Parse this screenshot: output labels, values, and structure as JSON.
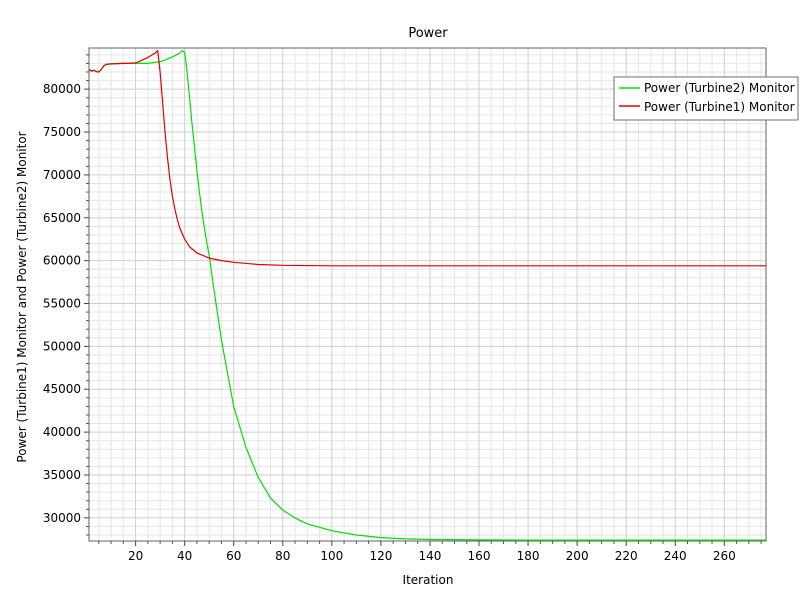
{
  "chart_data": {
    "type": "line",
    "title": "Power",
    "xlabel": "Iteration",
    "ylabel": "Power (Turbine1) Monitor and Power (Turbine2) Monitor",
    "xlim": [
      1,
      277
    ],
    "ylim": [
      27300,
      84800
    ],
    "xticks": [
      20,
      40,
      60,
      80,
      100,
      120,
      140,
      160,
      180,
      200,
      220,
      240,
      260
    ],
    "yticks": [
      30000,
      35000,
      40000,
      45000,
      50000,
      55000,
      60000,
      65000,
      70000,
      75000,
      80000
    ],
    "grid": true,
    "legend_position": "top-right",
    "series": [
      {
        "name": "Power (Turbine2) Monitor",
        "color": "#00e000",
        "points": [
          [
            1,
            82300
          ],
          [
            2,
            82100
          ],
          [
            3,
            82200
          ],
          [
            4,
            82050
          ],
          [
            5,
            82000
          ],
          [
            6,
            82300
          ],
          [
            7,
            82700
          ],
          [
            8,
            82900
          ],
          [
            10,
            82950
          ],
          [
            15,
            83000
          ],
          [
            20,
            83000
          ],
          [
            25,
            83000
          ],
          [
            30,
            83200
          ],
          [
            33,
            83500
          ],
          [
            36,
            83900
          ],
          [
            38,
            84200
          ],
          [
            39,
            84500
          ],
          [
            40,
            84300
          ],
          [
            41,
            82000
          ],
          [
            42,
            79000
          ],
          [
            43,
            76000
          ],
          [
            44,
            73200
          ],
          [
            45,
            70500
          ],
          [
            46,
            68000
          ],
          [
            47,
            65800
          ],
          [
            48,
            63900
          ],
          [
            49,
            62200
          ],
          [
            50,
            60600
          ],
          [
            52,
            56500
          ],
          [
            55,
            50700
          ],
          [
            60,
            43000
          ],
          [
            65,
            38200
          ],
          [
            70,
            34700
          ],
          [
            75,
            32300
          ],
          [
            80,
            30900
          ],
          [
            85,
            30000
          ],
          [
            90,
            29300
          ],
          [
            100,
            28500
          ],
          [
            110,
            28000
          ],
          [
            120,
            27700
          ],
          [
            130,
            27550
          ],
          [
            140,
            27480
          ],
          [
            160,
            27430
          ],
          [
            180,
            27410
          ],
          [
            200,
            27400
          ],
          [
            240,
            27400
          ],
          [
            277,
            27400
          ]
        ]
      },
      {
        "name": "Power (Turbine1) Monitor",
        "color": "#e00000",
        "points": [
          [
            1,
            82300
          ],
          [
            2,
            82100
          ],
          [
            3,
            82200
          ],
          [
            4,
            82050
          ],
          [
            5,
            82000
          ],
          [
            6,
            82300
          ],
          [
            7,
            82700
          ],
          [
            8,
            82900
          ],
          [
            10,
            82950
          ],
          [
            15,
            83000
          ],
          [
            20,
            83050
          ],
          [
            22,
            83300
          ],
          [
            25,
            83700
          ],
          [
            28,
            84200
          ],
          [
            29,
            84500
          ],
          [
            30,
            82000
          ],
          [
            31,
            78500
          ],
          [
            32,
            75000
          ],
          [
            33,
            72000
          ],
          [
            34,
            69500
          ],
          [
            35,
            67500
          ],
          [
            36,
            66000
          ],
          [
            37,
            64800
          ],
          [
            38,
            63800
          ],
          [
            40,
            62500
          ],
          [
            42,
            61600
          ],
          [
            45,
            60900
          ],
          [
            50,
            60300
          ],
          [
            55,
            60000
          ],
          [
            60,
            59800
          ],
          [
            70,
            59550
          ],
          [
            80,
            59450
          ],
          [
            100,
            59400
          ],
          [
            140,
            59400
          ],
          [
            200,
            59400
          ],
          [
            277,
            59400
          ]
        ]
      }
    ]
  }
}
